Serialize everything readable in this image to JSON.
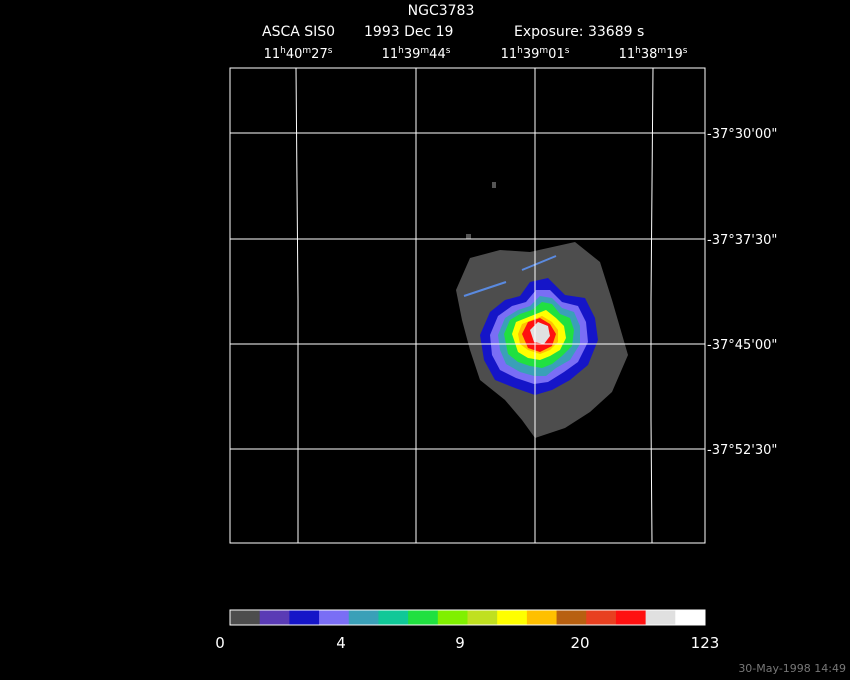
{
  "title": "NGC3783",
  "subtitle": {
    "instrument": "ASCA SIS0",
    "date": "1993 Dec 19",
    "exposure": "Exposure: 33689 s"
  },
  "ra_labels": [
    [
      "11",
      "h",
      "40",
      "m",
      "27",
      "s"
    ],
    [
      "11",
      "h",
      "39",
      "m",
      "44",
      "s"
    ],
    [
      "11",
      "h",
      "39",
      "m",
      "01",
      "s"
    ],
    [
      "11",
      "h",
      "38",
      "m",
      "19",
      "s"
    ]
  ],
  "dec_labels": [
    "-37°30'00\"",
    "-37°37'30\"",
    "-37°45'00\"",
    "-37°52'30\""
  ],
  "colorbar": {
    "colors": [
      "#4d4d4d",
      "#5a3bb5",
      "#1515c8",
      "#7a6ef5",
      "#3aa0b8",
      "#10c898",
      "#20e040",
      "#80f000",
      "#c0e020",
      "#ffff00",
      "#ffc000",
      "#b86010",
      "#e84020",
      "#ff1010",
      "#e0e0e0",
      "#ffffff"
    ],
    "labels": [
      "0",
      "4",
      "9",
      "20",
      "123"
    ]
  },
  "timestamp": "30-May-1998 14:49"
}
